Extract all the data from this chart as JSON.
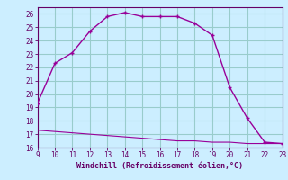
{
  "xlabel": "Windchill (Refroidissement éolien,°C)",
  "x_temp": [
    9,
    10,
    11,
    12,
    13,
    14,
    15,
    16,
    17,
    18,
    19,
    20,
    21,
    22,
    23
  ],
  "y_temp": [
    19.3,
    22.3,
    23.1,
    24.7,
    25.8,
    26.1,
    25.8,
    25.8,
    25.8,
    25.3,
    24.4,
    20.5,
    18.2,
    16.4,
    16.3
  ],
  "x_wind": [
    9,
    10,
    11,
    12,
    13,
    14,
    15,
    16,
    17,
    18,
    19,
    20,
    21,
    22,
    23
  ],
  "y_wind": [
    17.3,
    17.2,
    17.1,
    17.0,
    16.9,
    16.8,
    16.7,
    16.6,
    16.5,
    16.5,
    16.4,
    16.4,
    16.3,
    16.3,
    16.3
  ],
  "line_color": "#990099",
  "bg_color": "#cceeff",
  "grid_color": "#99cccc",
  "axis_color": "#660066",
  "ylim": [
    16,
    26.5
  ],
  "xlim": [
    9,
    23
  ],
  "yticks": [
    16,
    17,
    18,
    19,
    20,
    21,
    22,
    23,
    24,
    25,
    26
  ],
  "xticks": [
    9,
    10,
    11,
    12,
    13,
    14,
    15,
    16,
    17,
    18,
    19,
    20,
    21,
    22,
    23
  ],
  "marker": "+"
}
